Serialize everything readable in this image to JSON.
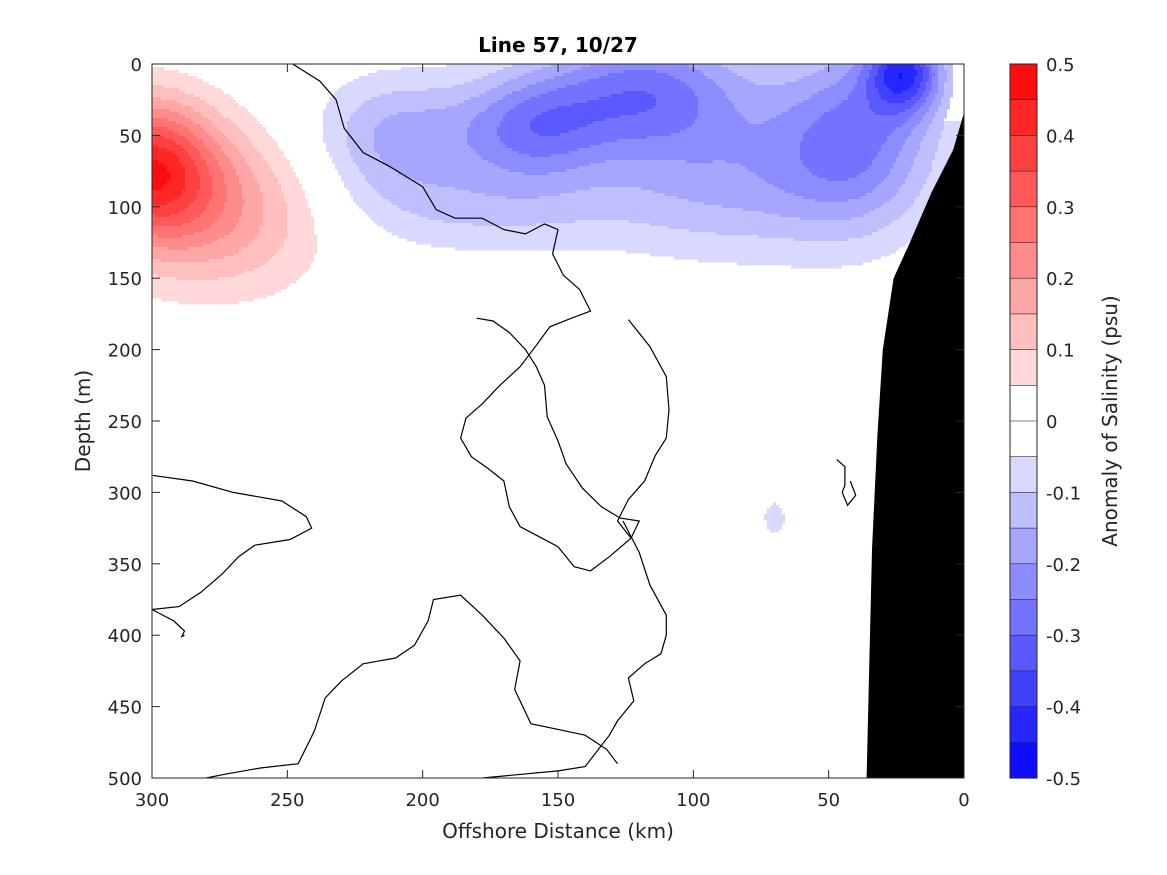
{
  "chart_data": {
    "type": "heatmap",
    "subtype": "filled-contour-section",
    "title": "Line 57, 10/27",
    "xlabel": "Offshore Distance (km)",
    "ylabel": "Depth (m)",
    "colorbar_label": "Anomaly of Salinity (psu)",
    "xlim": [
      300,
      0
    ],
    "x_direction": "reversed",
    "ylim": [
      0,
      500
    ],
    "y_direction": "reversed",
    "x_ticks": [
      "300",
      "250",
      "200",
      "150",
      "100",
      "50",
      "0"
    ],
    "x_tick_values": [
      300,
      250,
      200,
      150,
      100,
      50,
      0
    ],
    "y_ticks": [
      "0",
      "50",
      "100",
      "150",
      "200",
      "250",
      "300",
      "350",
      "400",
      "450",
      "500"
    ],
    "y_tick_values": [
      0,
      50,
      100,
      150,
      200,
      250,
      300,
      350,
      400,
      450,
      500
    ],
    "colorbar_ticks": [
      "0.5",
      "0.4",
      "0.3",
      "0.2",
      "0.1",
      "0",
      "-0.1",
      "-0.2",
      "-0.3",
      "-0.4",
      "-0.5"
    ],
    "colorbar_tick_values": [
      0.5,
      0.4,
      0.3,
      0.2,
      0.1,
      0,
      -0.1,
      -0.2,
      -0.3,
      -0.4,
      -0.5
    ],
    "colorbar_range": [
      -0.5,
      0.5
    ],
    "contour_step": 0.05,
    "colormap": {
      "negative_end": "#0000ff",
      "zero": "#ffffff",
      "positive_end": "#ff0000"
    },
    "zero_contour_color": "#000000",
    "topography_color": "#000000",
    "grid": false,
    "legend": "colorbar-right",
    "features": [
      {
        "name": "positive anomaly core",
        "value": 0.3,
        "center_km": 300,
        "center_depth_m": 70
      },
      {
        "name": "positive anomaly outer",
        "value": 0.1,
        "extent_km": [
          230,
          300
        ],
        "extent_depth_m": [
          0,
          180
        ]
      },
      {
        "name": "negative anomaly nearshore surface core",
        "value": -0.3,
        "center_km": 22,
        "center_depth_m": 5
      },
      {
        "name": "negative anomaly offshore core",
        "value": -0.25,
        "center_km": 120,
        "center_depth_m": 20
      },
      {
        "name": "negative anomaly extent",
        "value": -0.1,
        "extent_km": [
          5,
          250
        ],
        "extent_depth_m": [
          0,
          160
        ]
      },
      {
        "name": "small negative patch",
        "value": -0.1,
        "center_km": 70,
        "center_depth_m": 315
      }
    ]
  }
}
